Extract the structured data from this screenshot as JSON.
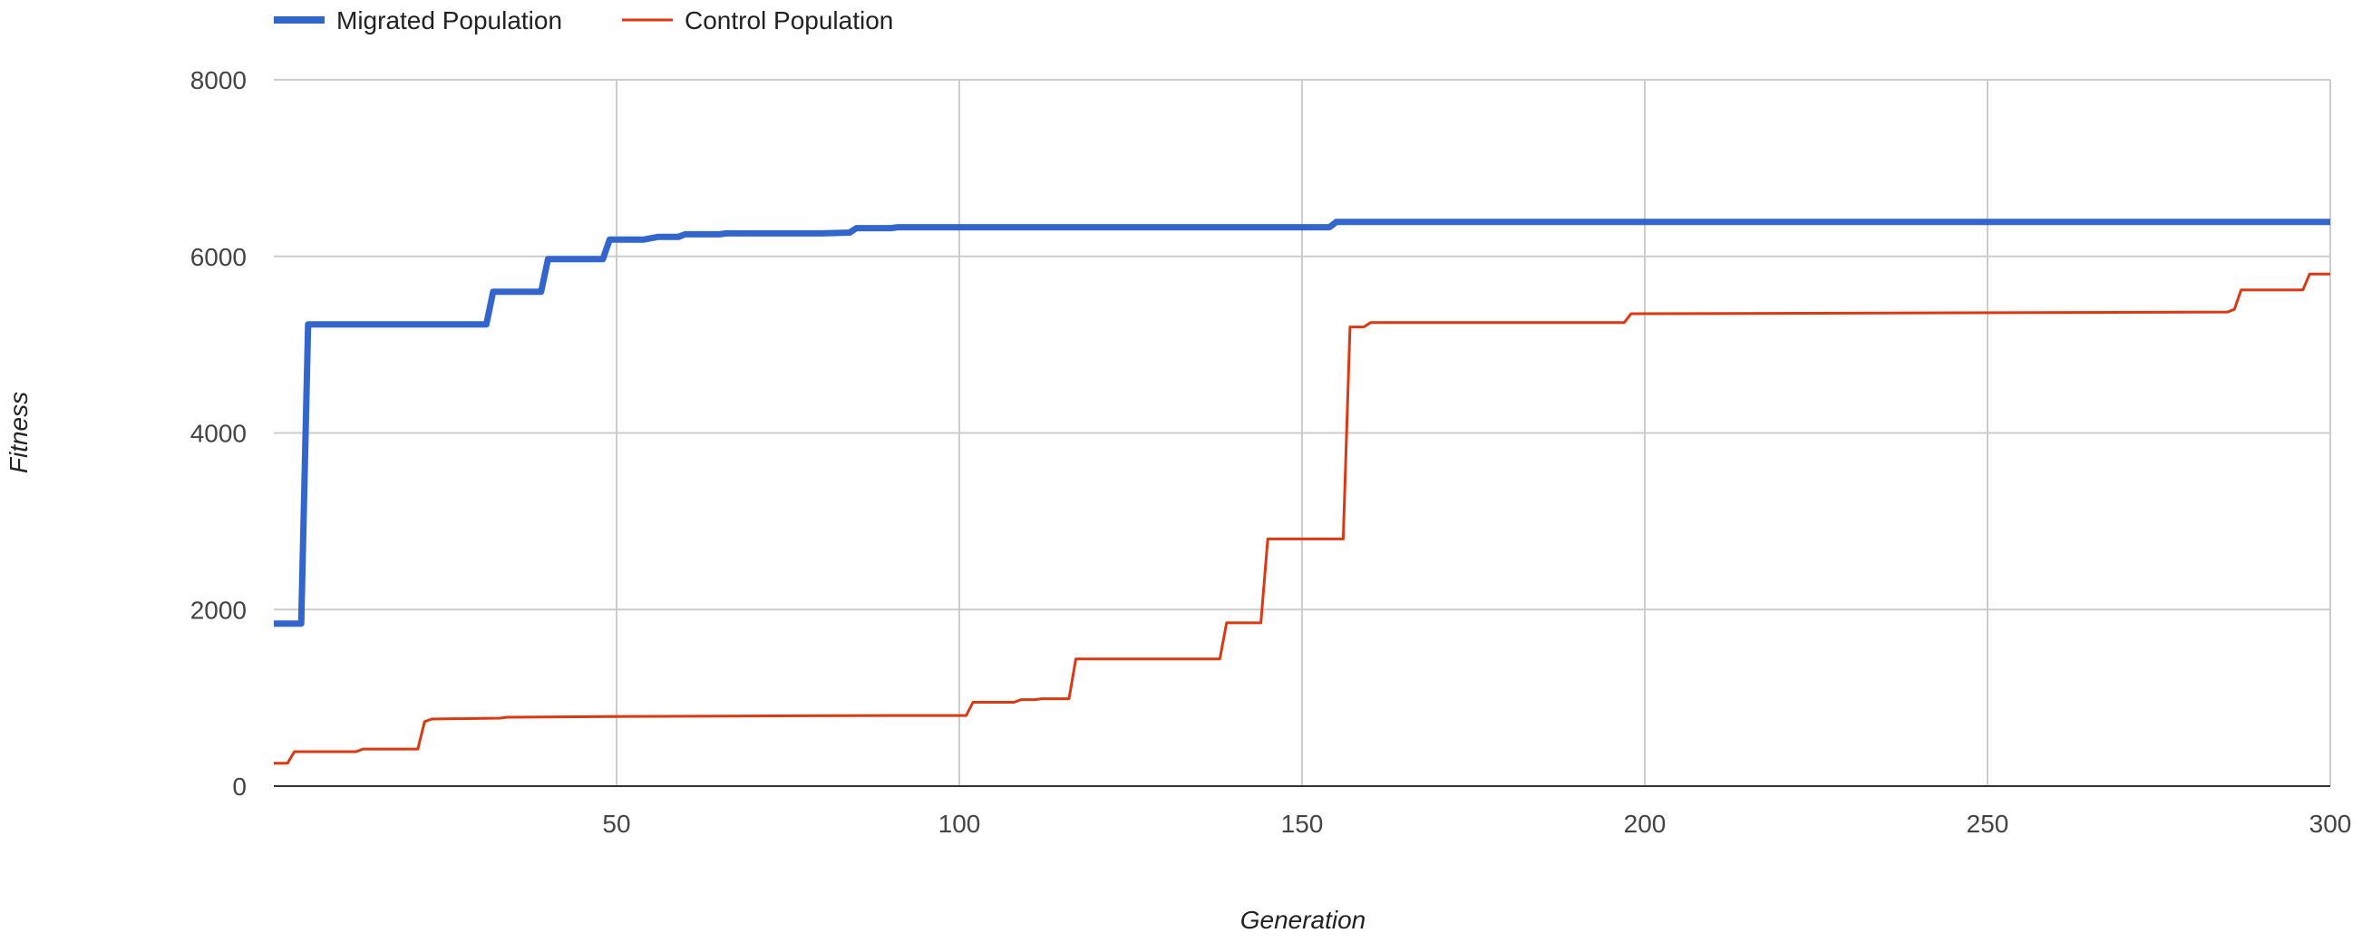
{
  "chart_data": {
    "type": "line",
    "xlabel": "Generation",
    "ylabel": "Fitness",
    "xlim": [
      0,
      300
    ],
    "ylim": [
      0,
      8000
    ],
    "x_ticks": [
      50,
      100,
      150,
      200,
      250,
      300
    ],
    "y_ticks": [
      0,
      2000,
      4000,
      6000,
      8000
    ],
    "grid": true,
    "legend_position": "top-left",
    "series": [
      {
        "name": "Migrated Population",
        "color": "#3366cc",
        "points": [
          [
            0,
            1840
          ],
          [
            4,
            1840
          ],
          [
            5,
            5230
          ],
          [
            31,
            5230
          ],
          [
            32,
            5600
          ],
          [
            39,
            5600
          ],
          [
            40,
            5970
          ],
          [
            48,
            5970
          ],
          [
            49,
            6190
          ],
          [
            54,
            6190
          ],
          [
            56,
            6220
          ],
          [
            59,
            6220
          ],
          [
            60,
            6250
          ],
          [
            65,
            6250
          ],
          [
            66,
            6260
          ],
          [
            80,
            6260
          ],
          [
            84,
            6270
          ],
          [
            85,
            6320
          ],
          [
            90,
            6320
          ],
          [
            91,
            6330
          ],
          [
            154,
            6330
          ],
          [
            155,
            6390
          ],
          [
            300,
            6390
          ]
        ]
      },
      {
        "name": "Control Population",
        "color": "#dc3912",
        "points": [
          [
            0,
            260
          ],
          [
            2,
            260
          ],
          [
            3,
            390
          ],
          [
            12,
            390
          ],
          [
            13,
            420
          ],
          [
            21,
            420
          ],
          [
            22,
            730
          ],
          [
            23,
            760
          ],
          [
            33,
            770
          ],
          [
            34,
            780
          ],
          [
            52,
            790
          ],
          [
            90,
            800
          ],
          [
            101,
            800
          ],
          [
            102,
            950
          ],
          [
            108,
            950
          ],
          [
            109,
            980
          ],
          [
            111,
            980
          ],
          [
            112,
            990
          ],
          [
            116,
            990
          ],
          [
            117,
            1440
          ],
          [
            138,
            1440
          ],
          [
            139,
            1850
          ],
          [
            144,
            1850
          ],
          [
            145,
            2800
          ],
          [
            156,
            2800
          ],
          [
            157,
            5200
          ],
          [
            159,
            5200
          ],
          [
            160,
            5250
          ],
          [
            197,
            5250
          ],
          [
            198,
            5350
          ],
          [
            285,
            5370
          ],
          [
            286,
            5400
          ],
          [
            287,
            5620
          ],
          [
            296,
            5620
          ],
          [
            297,
            5800
          ],
          [
            300,
            5800
          ]
        ]
      }
    ]
  }
}
